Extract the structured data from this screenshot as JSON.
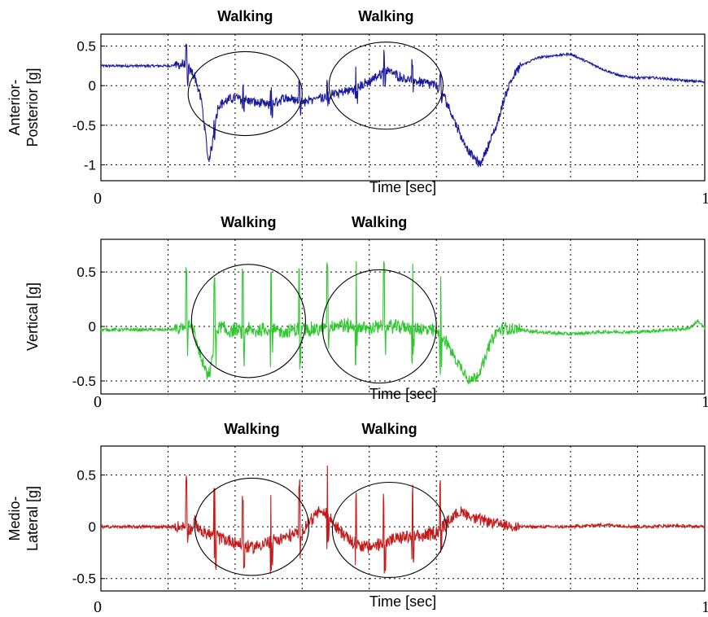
{
  "chart_data": [
    {
      "type": "line",
      "ylabel": [
        "Anterior-",
        "Posterior [g]"
      ],
      "xlabel": "Time [sec]",
      "xlim": [
        0,
        180
      ],
      "ylim": [
        -1.2,
        0.65
      ],
      "x_tick_labels": [
        "0",
        "180"
      ],
      "y_ticks": [
        -1,
        -0.5,
        0,
        0.5
      ],
      "y_tick_labels": [
        "-1",
        "-0.5",
        "0",
        "0.5"
      ],
      "grid": true,
      "color": "#1a1a9c",
      "annotations": [
        {
          "text": "Walking",
          "x_center": 43,
          "y_center": -0.1,
          "x_radius": 17,
          "y_radius": 0.53
        },
        {
          "text": "Walking",
          "x_center": 85,
          "y_center": 0.0,
          "x_radius": 17,
          "y_radius": 0.55
        }
      ],
      "series": [
        {
          "x": [
            0,
            10,
            20,
            25,
            28,
            30,
            31,
            32,
            33,
            34,
            35,
            37,
            40,
            45,
            50,
            55,
            60,
            65,
            70,
            75,
            80,
            85,
            90,
            95,
            100,
            102,
            104,
            106,
            108,
            110,
            113,
            115,
            118,
            120,
            122,
            125,
            130,
            135,
            140,
            145,
            150,
            155,
            160,
            165,
            170,
            175,
            180
          ],
          "y": [
            0.25,
            0.25,
            0.25,
            0.27,
            0.12,
            -0.2,
            -0.55,
            -0.95,
            -0.8,
            -0.5,
            -0.25,
            -0.2,
            -0.15,
            -0.2,
            -0.25,
            -0.15,
            -0.2,
            -0.15,
            -0.1,
            -0.05,
            0.05,
            0.2,
            0.1,
            0.05,
            0.0,
            -0.1,
            -0.3,
            -0.5,
            -0.7,
            -0.85,
            -1.0,
            -0.8,
            -0.5,
            -0.2,
            0.05,
            0.25,
            0.35,
            0.38,
            0.4,
            0.3,
            0.2,
            0.12,
            0.1,
            0.1,
            0.08,
            0.06,
            0.05
          ],
          "name": ""
        }
      ]
    },
    {
      "type": "line",
      "ylabel": [
        "Vertical [g]"
      ],
      "xlabel": "Time [sec]",
      "xlim": [
        0,
        180
      ],
      "ylim": [
        -0.62,
        0.8
      ],
      "x_tick_labels": [
        "0",
        "180"
      ],
      "y_ticks": [
        -0.5,
        0,
        0.5
      ],
      "y_tick_labels": [
        "-0.5",
        "0",
        "0.5"
      ],
      "grid": true,
      "color": "#2ec82e",
      "annotations": [
        {
          "text": "Walking",
          "x_center": 44,
          "y_center": 0.05,
          "x_radius": 17,
          "y_radius": 0.52
        },
        {
          "text": "Walking",
          "x_center": 83,
          "y_center": 0.0,
          "x_radius": 17,
          "y_radius": 0.52
        }
      ],
      "series": [
        {
          "x": [
            0,
            10,
            20,
            25,
            27,
            28,
            30,
            32,
            33,
            34,
            36,
            38,
            40,
            42,
            44,
            46,
            48,
            50,
            55,
            60,
            65,
            70,
            75,
            80,
            85,
            90,
            95,
            100,
            102,
            104,
            106,
            108,
            110,
            112,
            114,
            116,
            118,
            120,
            125,
            130,
            140,
            150,
            160,
            170,
            175,
            178,
            180
          ],
          "y": [
            -0.03,
            -0.03,
            -0.03,
            -0.02,
            0.05,
            -0.1,
            -0.3,
            -0.48,
            -0.35,
            -0.05,
            0.0,
            -0.05,
            -0.03,
            -0.05,
            -0.03,
            -0.05,
            -0.02,
            -0.03,
            -0.05,
            -0.02,
            -0.03,
            0.02,
            0.0,
            -0.02,
            0.0,
            0.0,
            -0.02,
            -0.05,
            -0.1,
            -0.2,
            -0.32,
            -0.4,
            -0.5,
            -0.45,
            -0.35,
            -0.15,
            -0.05,
            -0.02,
            -0.03,
            -0.05,
            -0.07,
            -0.05,
            -0.05,
            -0.03,
            -0.02,
            0.05,
            -0.02
          ],
          "name": ""
        }
      ]
    },
    {
      "type": "line",
      "ylabel": [
        "Medio-",
        "Lateral [g]"
      ],
      "xlabel": "Time [sec]",
      "xlim": [
        0,
        180
      ],
      "ylim": [
        -0.62,
        0.78
      ],
      "x_tick_labels": [
        "0",
        "180"
      ],
      "y_ticks": [
        -0.5,
        0,
        0.5
      ],
      "y_tick_labels": [
        "-0.5",
        "0",
        "0.5"
      ],
      "grid": true,
      "color": "#c41a1a",
      "annotations": [
        {
          "text": "Walking",
          "x_center": 45,
          "y_center": 0.0,
          "x_radius": 17,
          "y_radius": 0.47
        },
        {
          "text": "Walking",
          "x_center": 86,
          "y_center": -0.03,
          "x_radius": 17,
          "y_radius": 0.46
        }
      ],
      "series": [
        {
          "x": [
            0,
            10,
            20,
            25,
            27,
            28,
            30,
            35,
            40,
            45,
            50,
            55,
            60,
            62,
            65,
            68,
            70,
            75,
            80,
            85,
            90,
            95,
            100,
            102,
            105,
            108,
            110,
            115,
            120,
            125,
            130,
            140,
            150,
            160,
            170,
            180
          ],
          "y": [
            0.0,
            0.0,
            0.0,
            0.0,
            -0.03,
            0.05,
            -0.05,
            -0.1,
            -0.15,
            -0.2,
            -0.15,
            -0.1,
            -0.05,
            0.05,
            0.15,
            0.1,
            0.0,
            -0.15,
            -0.2,
            -0.15,
            -0.1,
            -0.1,
            -0.05,
            0.0,
            0.1,
            0.15,
            0.1,
            0.05,
            0.02,
            0.0,
            0.0,
            0.0,
            0.02,
            0.0,
            0.01,
            0.0
          ],
          "name": ""
        }
      ]
    }
  ]
}
